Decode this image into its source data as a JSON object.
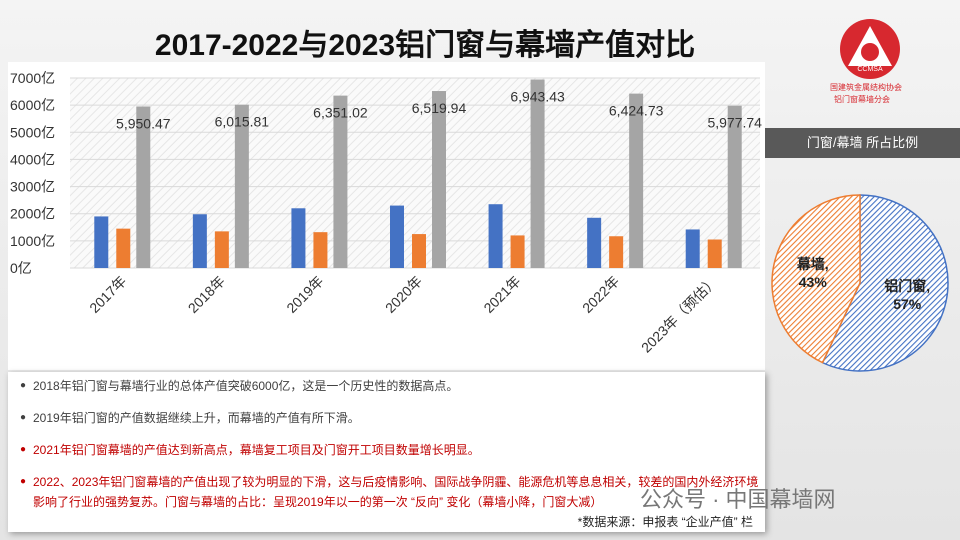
{
  "title": "2017-2022与2023铝门窗与幕墙产值对比",
  "logo": {
    "abbr": "CCMSA",
    "org": "中国建筑金属结构协会",
    "branch": "铝门窗幕墙分会"
  },
  "chart_data": [
    {
      "type": "bar",
      "categories": [
        "2017年",
        "2018年",
        "2019年",
        "2020年",
        "2021年",
        "2022年",
        "2023年（预估）"
      ],
      "series": [
        {
          "color": "#4472c4",
          "values": [
            1900,
            1980,
            2200,
            2300,
            2350,
            1850,
            1420
          ]
        },
        {
          "color": "#ed7d31",
          "values": [
            1450,
            1350,
            1320,
            1250,
            1200,
            1170,
            1050
          ]
        },
        {
          "color": "#a5a5a5",
          "values": [
            5950.47,
            6015.81,
            6351.02,
            6519.94,
            6943.43,
            6424.73,
            5977.74
          ],
          "value_labels": [
            "5,950.47",
            "6,015.81",
            "6,351.02",
            "6,519.94",
            "6,943.43",
            "6,424.73",
            "5,977.74"
          ]
        }
      ],
      "ylim": [
        0,
        7000
      ],
      "yticks": [
        {
          "value": 0,
          "label": "0亿"
        },
        {
          "value": 1000,
          "label": "1000亿"
        },
        {
          "value": 2000,
          "label": "2000亿"
        },
        {
          "value": 3000,
          "label": "3000亿"
        },
        {
          "value": 4000,
          "label": "4000亿"
        },
        {
          "value": 5000,
          "label": "5000亿"
        },
        {
          "value": 6000,
          "label": "6000亿"
        },
        {
          "value": 7000,
          "label": "7000亿"
        }
      ],
      "grid": true
    },
    {
      "type": "pie",
      "title": "门窗/幕墙 所占比例",
      "values": [
        57,
        43
      ],
      "value_labels": [
        "铝门窗, 57%",
        "幕墙, 43%"
      ],
      "colors": [
        "#4472c4",
        "#ed7d31"
      ]
    }
  ],
  "notes": [
    {
      "text": "2018年铝门窗与幕墙行业的总体产值突破6000亿，这是一个历史性的数据高点。",
      "color": "#404040"
    },
    {
      "text": "2019年铝门窗的产值数据继续上升，而幕墙的产值有所下滑。",
      "color": "#404040"
    },
    {
      "text": "2021年铝门窗幕墙的产值达到新高点，幕墙复工项目及门窗开工项目数量增长明显。",
      "color": "#c00000"
    },
    {
      "text": "2022、2023年铝门窗幕墙的产值出现了较为明显的下滑，这与后疫情影响、国际战争阴霾、能源危机等息息相关，较差的国内外经济环境影响了行业的强势复苏。门窗与幕墙的占比：呈现2019年以一的第一次 “反向” 变化（幕墙小降，门窗大减）",
      "color": "#c00000"
    }
  ],
  "source": "*数据来源：申报表 “企业产值” 栏",
  "watermark": "公众号 · 中国幕墙网"
}
